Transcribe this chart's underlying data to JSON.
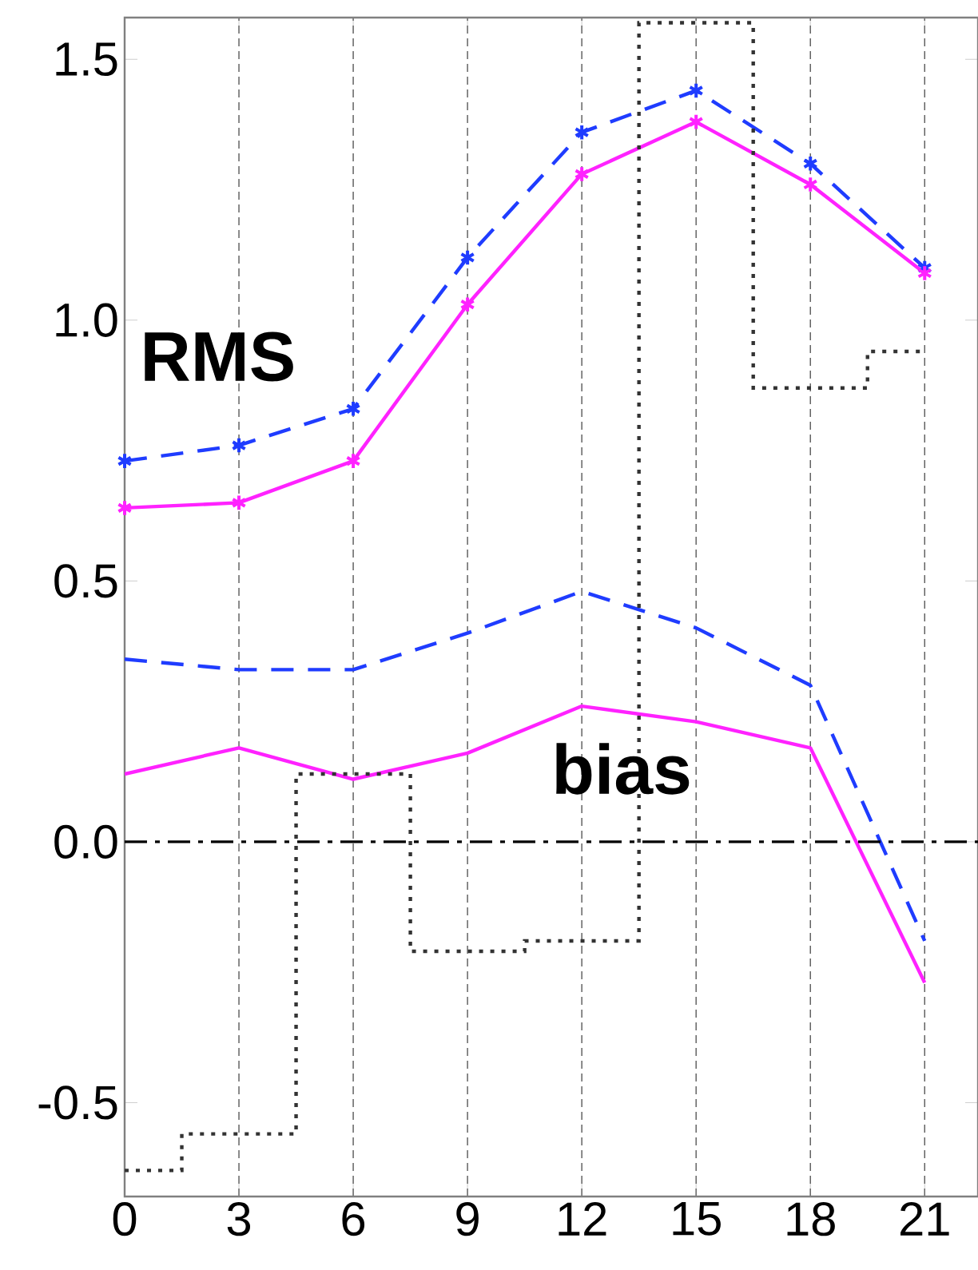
{
  "chart_data": {
    "type": "line",
    "x": [
      0,
      3,
      6,
      9,
      12,
      15,
      18,
      21
    ],
    "series": [
      {
        "color": "#1f3cff",
        "line_style": "dashed",
        "marker": "cross",
        "values": [
          0.73,
          0.76,
          0.83,
          1.12,
          1.36,
          1.44,
          1.3,
          1.1
        ]
      },
      {
        "color": "#ff22ff",
        "line_style": "solid",
        "marker": "cross",
        "values": [
          0.64,
          0.65,
          0.73,
          1.03,
          1.28,
          1.38,
          1.26,
          1.09
        ]
      },
      {
        "color": "#1f3cff",
        "line_style": "dashed",
        "marker": "none",
        "values": [
          0.35,
          0.33,
          0.33,
          0.4,
          0.48,
          0.41,
          0.3,
          -0.19
        ]
      },
      {
        "color": "#ff22ff",
        "line_style": "solid",
        "marker": "none",
        "values": [
          0.13,
          0.18,
          0.12,
          0.17,
          0.26,
          0.23,
          0.18,
          -0.27
        ]
      },
      {
        "type": "step",
        "color": "#333333",
        "line_style": "dotted",
        "marker": "none",
        "values": [
          -0.63,
          -0.56,
          0.13,
          -0.21,
          -0.19,
          1.57,
          0.87,
          0.94
        ]
      }
    ],
    "xlim": [
      0,
      22.4
    ],
    "ylim": [
      -0.68,
      1.58
    ],
    "xticks": [
      0,
      3,
      6,
      9,
      12,
      15,
      18,
      21
    ],
    "yticks": [
      {
        "value": -0.5,
        "label": "-0.5"
      },
      {
        "value": 0,
        "label": "0.0"
      },
      {
        "value": 0.5,
        "label": "0.5"
      },
      {
        "value": 1,
        "label": "1.0"
      },
      {
        "value": 1.5,
        "label": "1.5"
      }
    ],
    "grid": "x",
    "ref_lines": [
      {
        "axis": "y",
        "value": 0,
        "color": "#000000",
        "line_style": "dashdot"
      }
    ],
    "annotations": [
      "RMS",
      "bias"
    ]
  }
}
